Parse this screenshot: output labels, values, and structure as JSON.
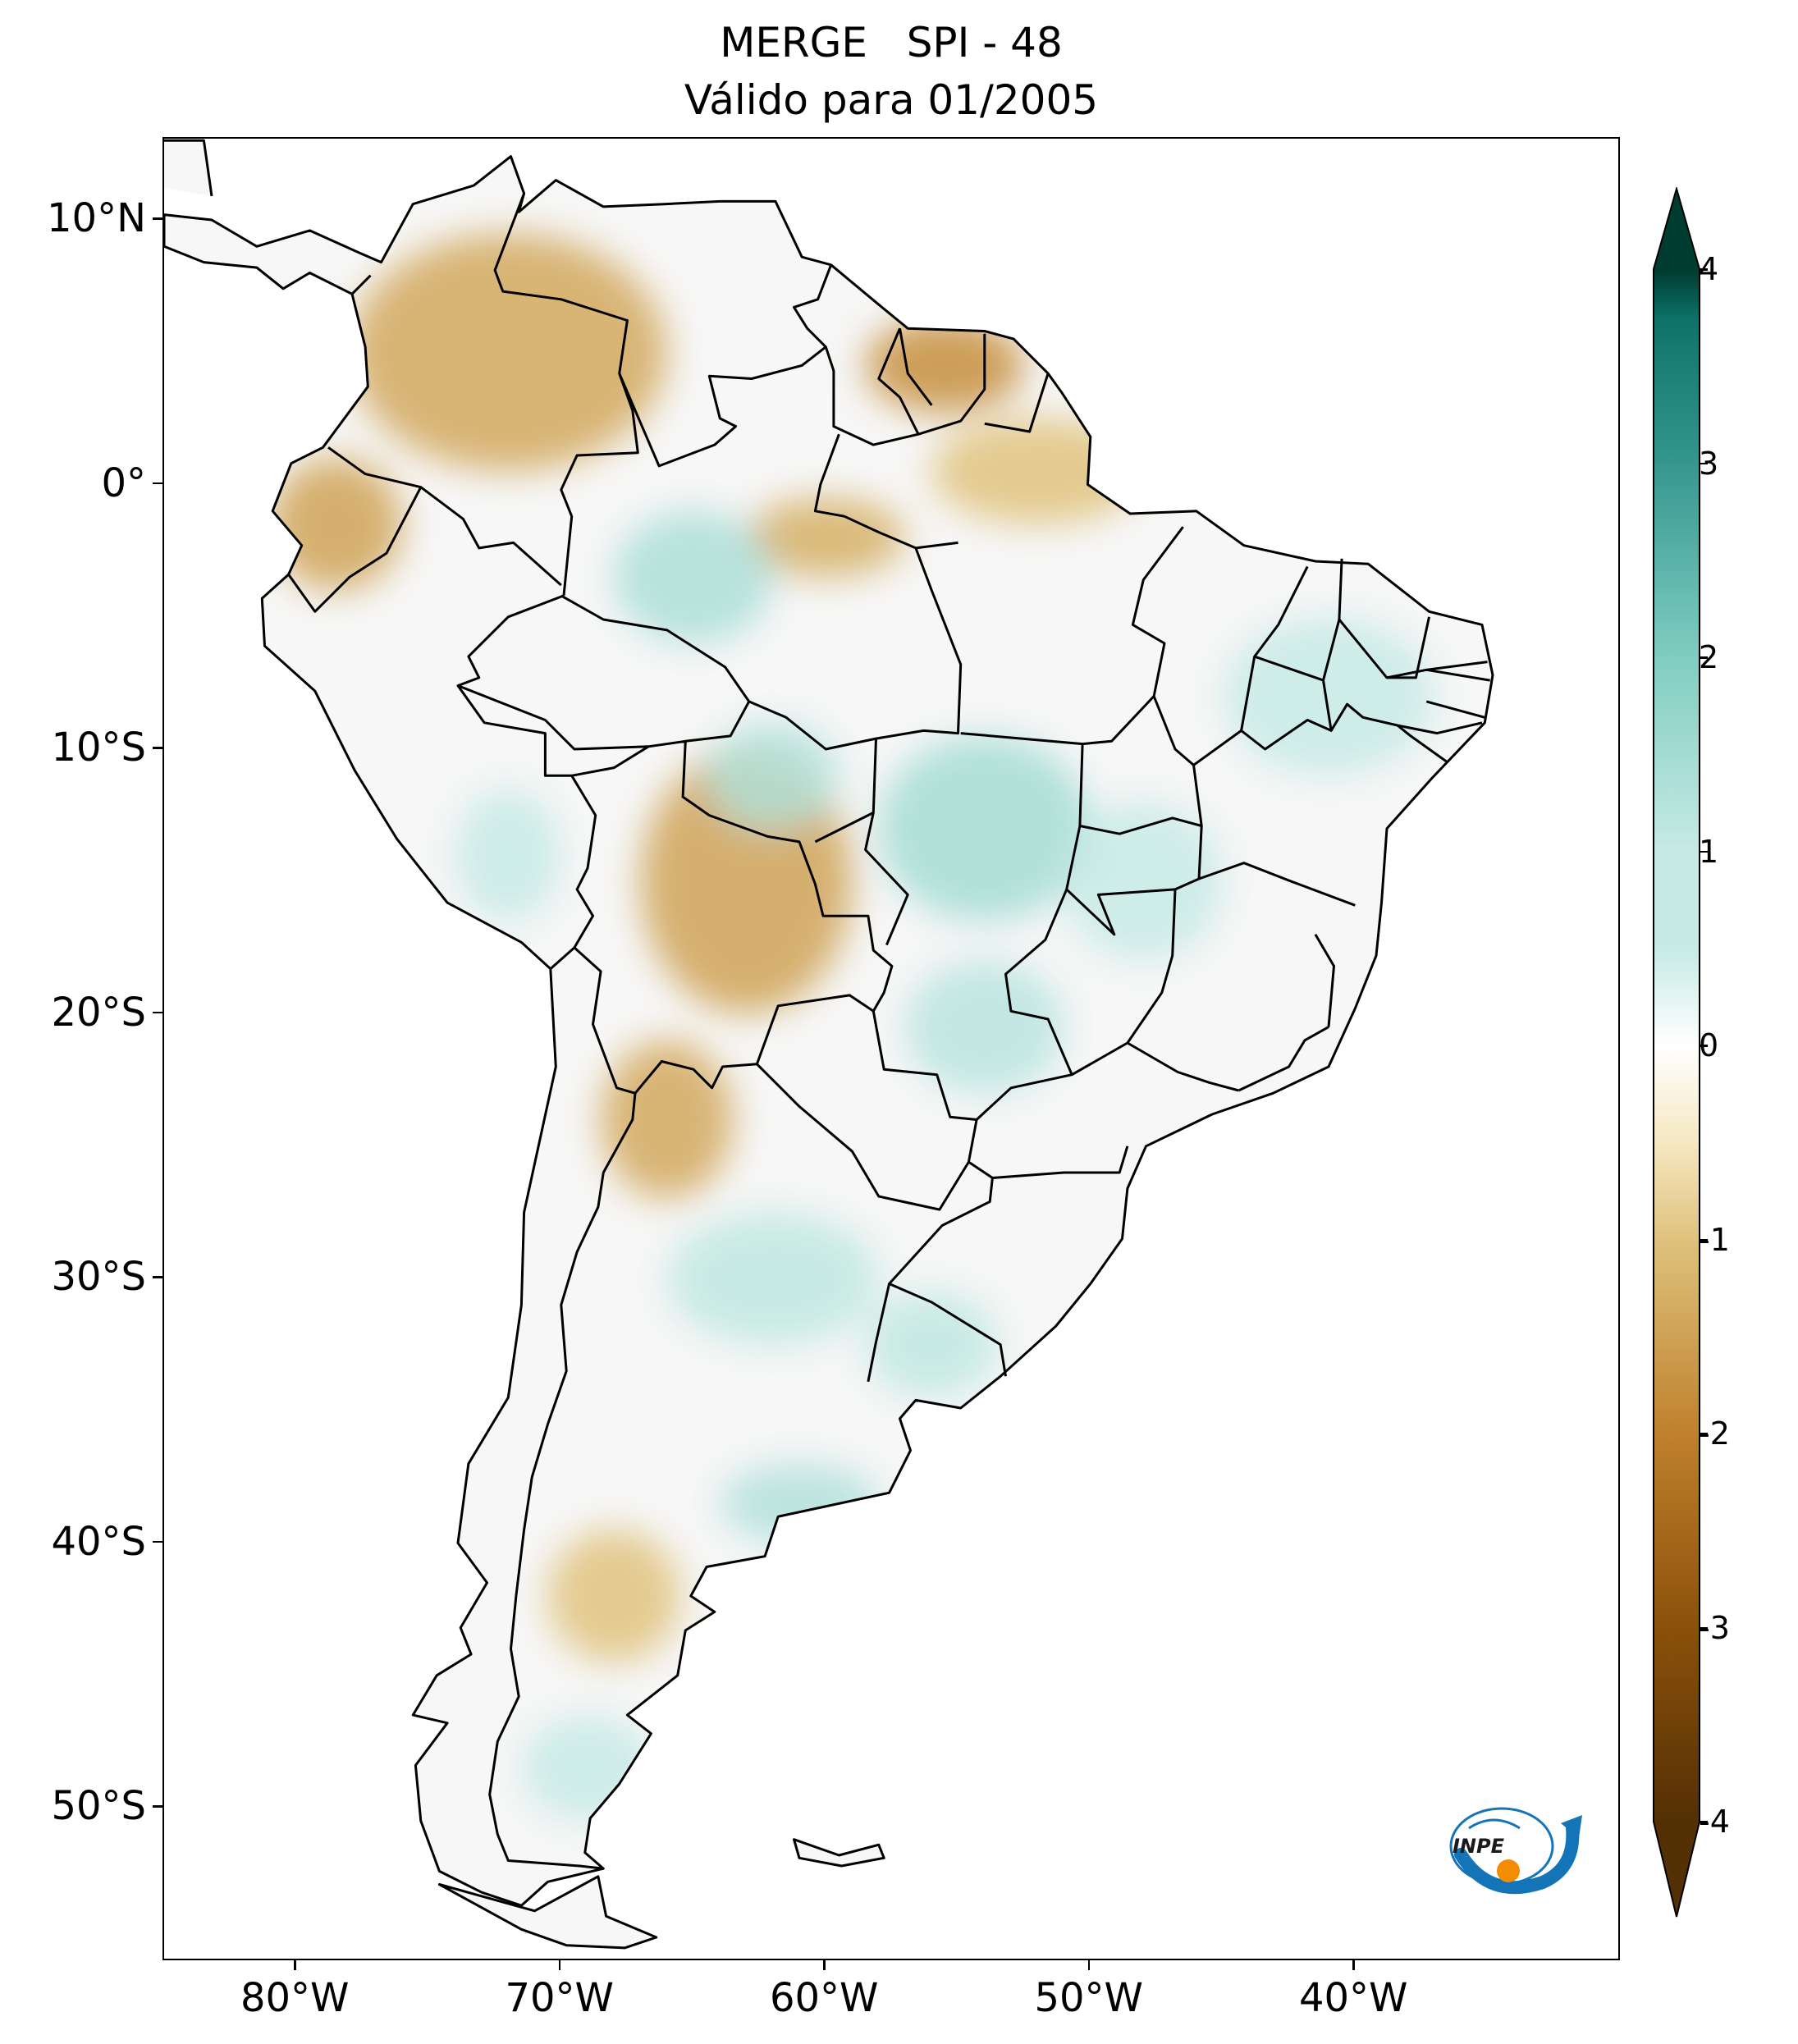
{
  "title": {
    "line1": "MERGE   SPI - 48",
    "line2": "Válido para 01/2005"
  },
  "map": {
    "lon_range": [
      -85,
      -30
    ],
    "lat_range": [
      -56,
      13
    ],
    "lat_ticks": [
      {
        "value": 10,
        "label": "10°N"
      },
      {
        "value": 0,
        "label": "0°"
      },
      {
        "value": -10,
        "label": "10°S"
      },
      {
        "value": -20,
        "label": "20°S"
      },
      {
        "value": -30,
        "label": "30°S"
      },
      {
        "value": -40,
        "label": "40°S"
      },
      {
        "value": -50,
        "label": "50°S"
      }
    ],
    "lon_ticks": [
      {
        "value": -80,
        "label": "80°W"
      },
      {
        "value": -70,
        "label": "70°W"
      },
      {
        "value": -60,
        "label": "60°W"
      },
      {
        "value": -50,
        "label": "50°W"
      },
      {
        "value": -40,
        "label": "40°W"
      }
    ],
    "colors": {
      "dry_strong": "#543005",
      "dry": "#8c510a",
      "dry_mid": "#bf812d",
      "dry_light": "#dfc27d",
      "dry_pale": "#f6e8c3",
      "neutral": "#f5f5f5",
      "wet_pale": "#c7eae5",
      "wet_light": "#80cdc1",
      "wet_mid": "#35978f",
      "wet": "#01665e",
      "wet_strong": "#003c30"
    },
    "anomaly_regions": [
      {
        "name": "colombia-venezuela-andes",
        "lon": -72,
        "lat": 5,
        "rx": 6,
        "ry": 4.5,
        "value": -1.4
      },
      {
        "name": "ecuador",
        "lon": -78.5,
        "lat": -1.5,
        "rx": 2.5,
        "ry": 2.5,
        "value": -1.5
      },
      {
        "name": "guianas",
        "lon": -55.5,
        "lat": 4.5,
        "rx": 3,
        "ry": 1.8,
        "value": -1.8
      },
      {
        "name": "north-para",
        "lon": -52,
        "lat": 0.5,
        "rx": 4,
        "ry": 2,
        "value": -1.0
      },
      {
        "name": "roraima-south",
        "lon": -60,
        "lat": -2,
        "rx": 3,
        "ry": 1.5,
        "value": -1.3
      },
      {
        "name": "west-amazonas",
        "lon": -65,
        "lat": -3.5,
        "rx": 3,
        "ry": 2.5,
        "value": 1.4
      },
      {
        "name": "bolivia",
        "lon": -63,
        "lat": -15,
        "rx": 4,
        "ry": 5,
        "value": -1.5
      },
      {
        "name": "north-argentina",
        "lon": -66,
        "lat": -24,
        "rx": 2.5,
        "ry": 3,
        "value": -1.4
      },
      {
        "name": "mato-grosso",
        "lon": -54,
        "lat": -13,
        "rx": 4,
        "ry": 3.5,
        "value": 1.5
      },
      {
        "name": "goias",
        "lon": -48,
        "lat": -15,
        "rx": 3,
        "ry": 3,
        "value": 1.0
      },
      {
        "name": "mato-grosso-do-sul",
        "lon": -54,
        "lat": -20.5,
        "rx": 3,
        "ry": 2.5,
        "value": 1.2
      },
      {
        "name": "rondonia",
        "lon": -62,
        "lat": -11,
        "rx": 2.5,
        "ry": 2,
        "value": 1.3
      },
      {
        "name": "northeast-brazil",
        "lon": -41,
        "lat": -8,
        "rx": 4,
        "ry": 3,
        "value": 0.8
      },
      {
        "name": "central-argentina",
        "lon": -62,
        "lat": -30,
        "rx": 4,
        "ry": 2.5,
        "value": 1.1
      },
      {
        "name": "uruguay",
        "lon": -56,
        "lat": -32.5,
        "rx": 2.5,
        "ry": 2,
        "value": 1.1
      },
      {
        "name": "buenos-aires-south",
        "lon": -61,
        "lat": -38.5,
        "rx": 3,
        "ry": 1.5,
        "value": 1.3
      },
      {
        "name": "patagonia-north",
        "lon": -68,
        "lat": -42,
        "rx": 2.5,
        "ry": 2.5,
        "value": -1.0
      },
      {
        "name": "patagonia-south",
        "lon": -69,
        "lat": -48.5,
        "rx": 2.5,
        "ry": 2,
        "value": 0.9
      },
      {
        "name": "south-peru",
        "lon": -72,
        "lat": -14,
        "rx": 2,
        "ry": 2.5,
        "value": 0.9
      }
    ]
  },
  "colorbar": {
    "min": -4,
    "max": 4,
    "ticks": [
      {
        "value": 4,
        "label": "4"
      },
      {
        "value": 3,
        "label": "3"
      },
      {
        "value": 2,
        "label": "2"
      },
      {
        "value": 1,
        "label": "1"
      },
      {
        "value": 0,
        "label": "0"
      },
      {
        "value": -1,
        "label": "-1"
      },
      {
        "value": -2,
        "label": "-2"
      },
      {
        "value": -3,
        "label": "-3"
      },
      {
        "value": -4,
        "label": "-4"
      }
    ]
  },
  "logo": {
    "text": "INPE",
    "colors": {
      "blue": "#1474b8",
      "orange": "#f28c00"
    }
  }
}
